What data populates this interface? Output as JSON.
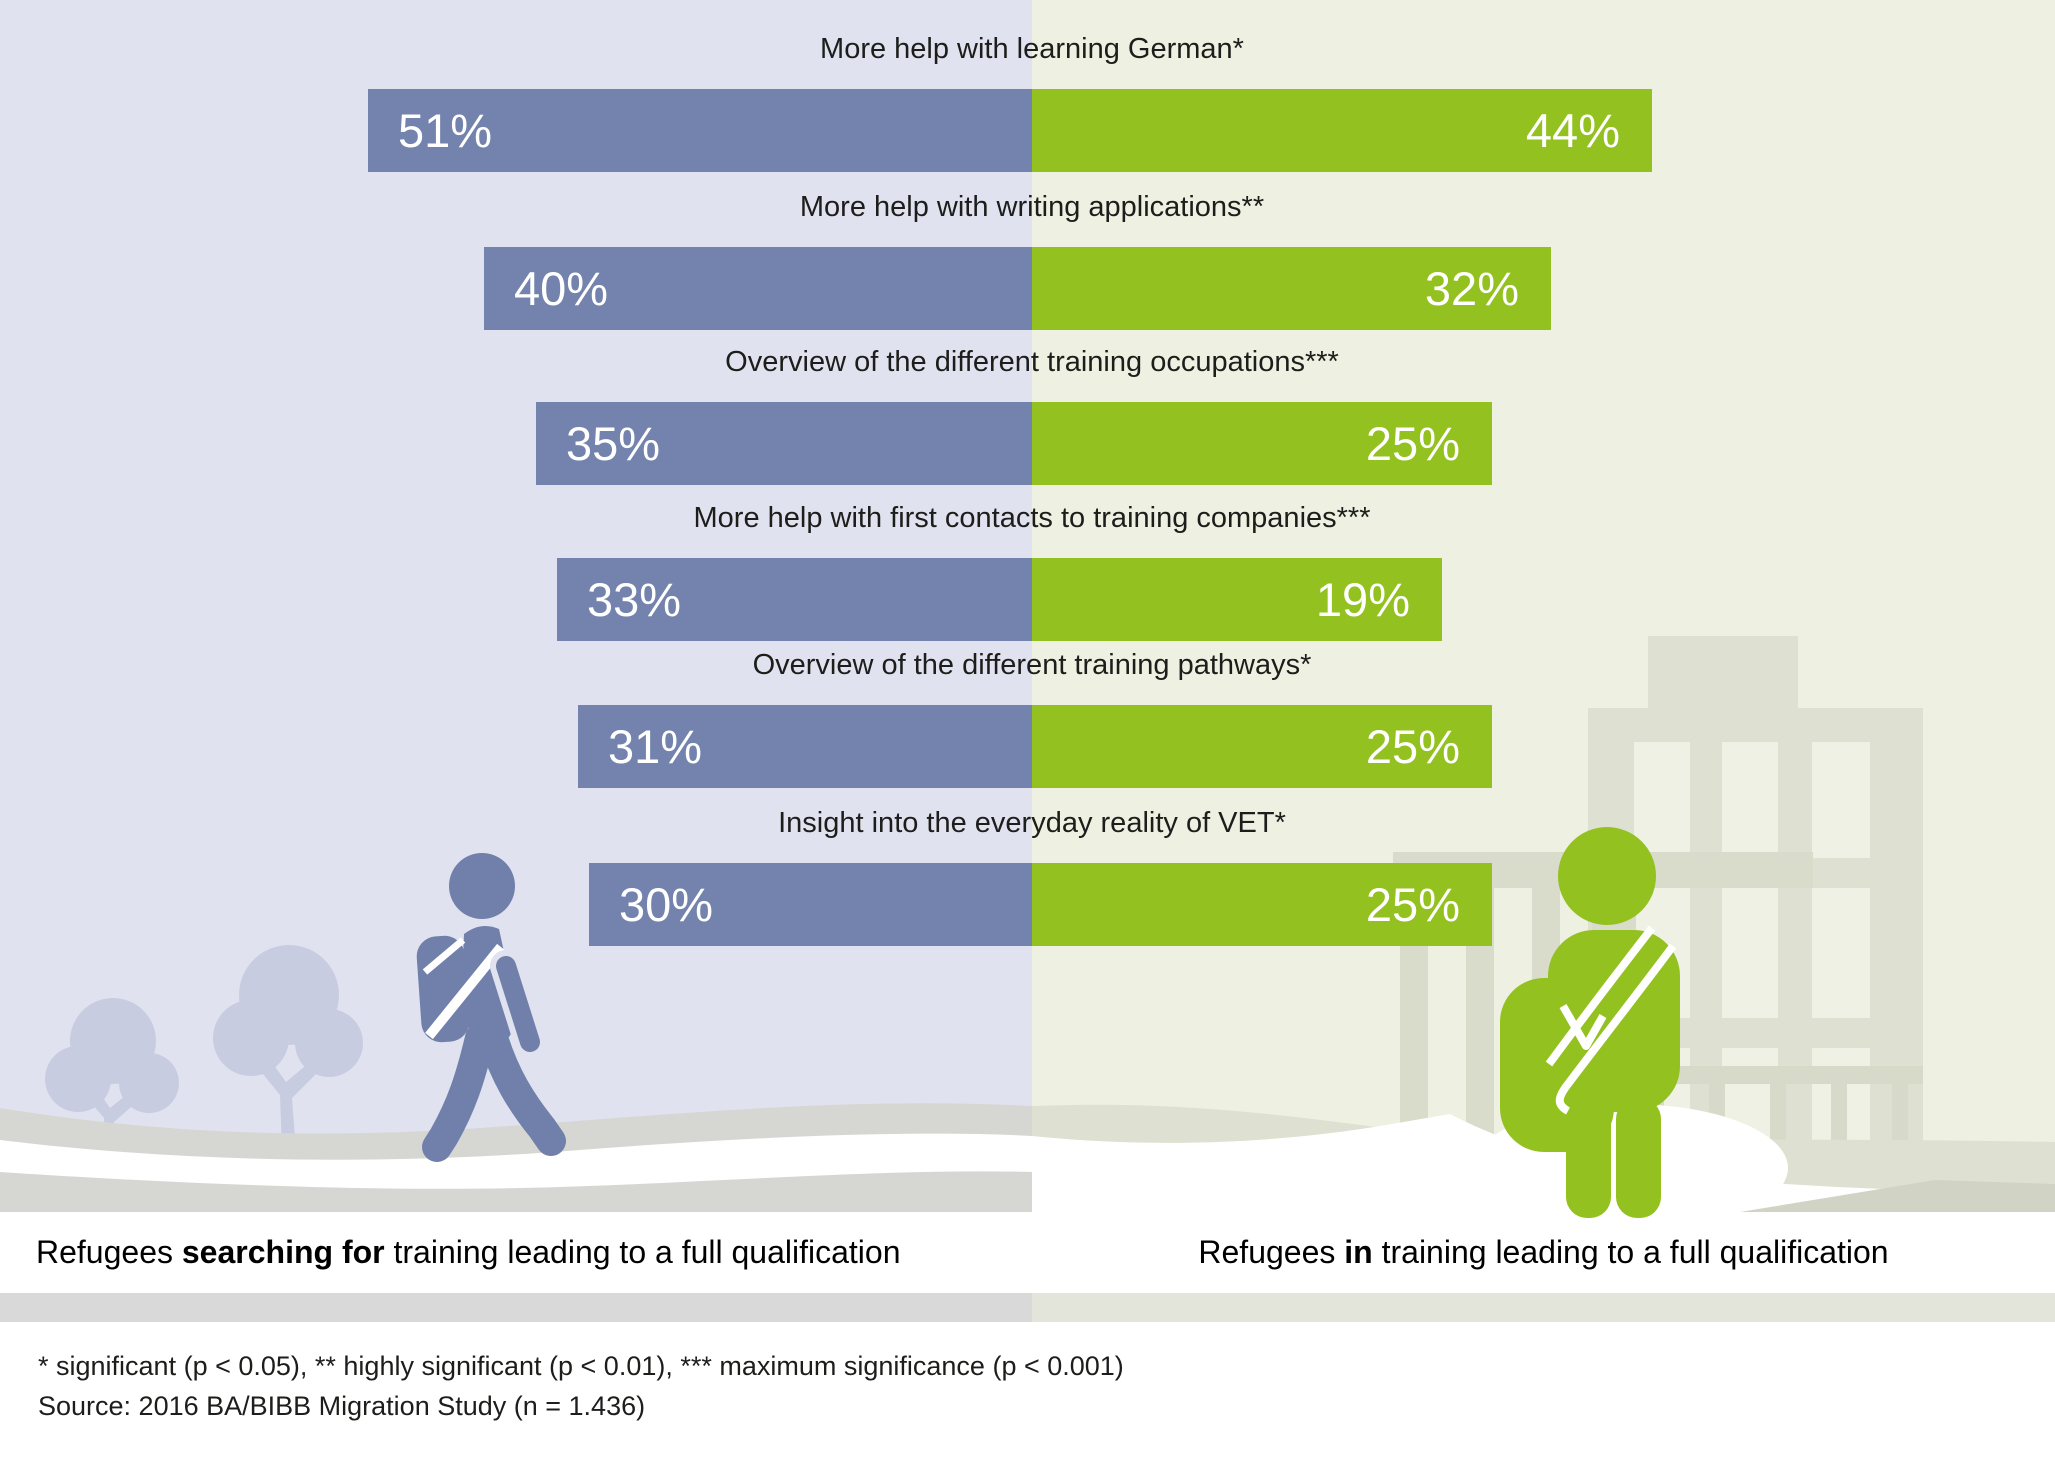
{
  "chart_data": {
    "type": "bar",
    "variant": "diverging-horizontal-paired",
    "title": "",
    "categories": [
      "More help with learning German*",
      "More help with writing applications**",
      "Overview of the different training occupations***",
      "More help with first contacts to training companies***",
      "Overview of the different training pathways*",
      "Insight into the everyday reality of VET*"
    ],
    "series": [
      {
        "name": "Refugees searching for training leading to a full qualification",
        "side": "left",
        "color": "#7383ad",
        "values": [
          51,
          40,
          35,
          33,
          31,
          30
        ]
      },
      {
        "name": "Refugees in training leading to a full qualification",
        "side": "right",
        "color": "#93c11f",
        "values": [
          44,
          32,
          25,
          19,
          25,
          25
        ]
      }
    ],
    "value_suffix": "%",
    "value_range": [
      0,
      55
    ],
    "grid": false,
    "legend_position": "bottom"
  },
  "captions": {
    "left": {
      "pre": "Refugees ",
      "bold": "searching for",
      "post": " training leading to a full qualification"
    },
    "right": {
      "pre": "Refugees ",
      "bold": "in",
      "post": " training leading to a full qualification"
    }
  },
  "footnotes": {
    "line1": "* significant (p < 0.05), ** highly significant (p < 0.01), *** maximum significance (p < 0.001)",
    "line2": "Source: 2016 BA/BIBB Migration Study (n = 1.436)"
  },
  "colors": {
    "left_accent": "#7383ad",
    "right_accent": "#93c11f",
    "left_background": "#e0e2ef",
    "right_background": "#eef0e1",
    "label_text": "#1d1d1b",
    "value_text": "#ffffff",
    "divider_left": "#d9d9d9",
    "divider_right": "#e3e4da"
  },
  "decorative_icons": [
    "tree-icon",
    "walking-person-icon",
    "building-icon",
    "fence-icon",
    "standing-person-icon"
  ]
}
